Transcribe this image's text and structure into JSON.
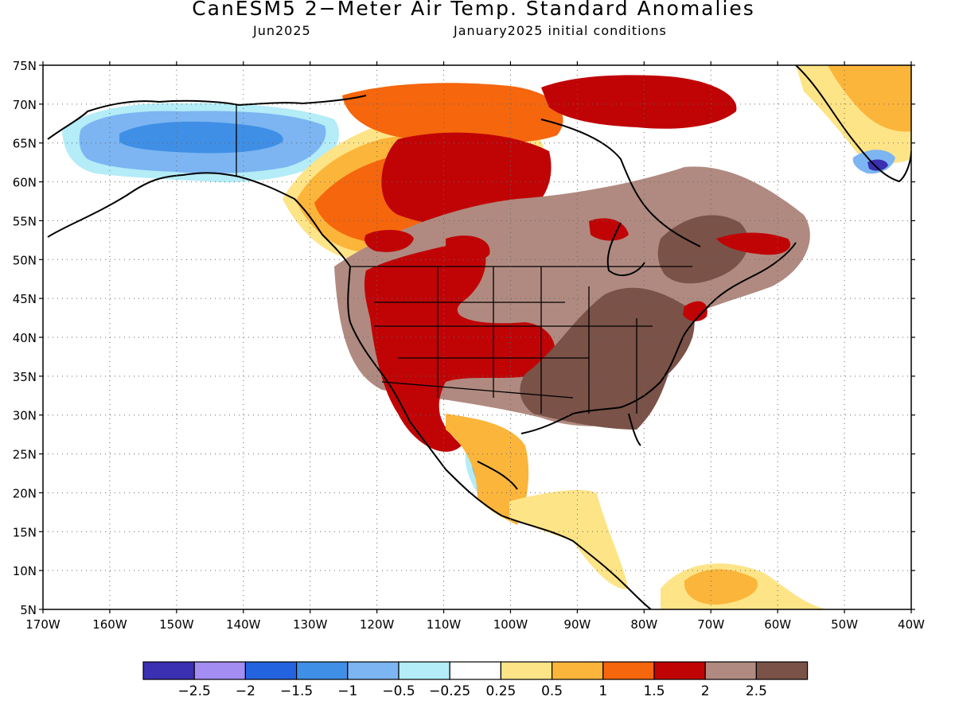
{
  "title": "CanESM5 2−Meter Air Temp. Standard Anomalies",
  "subtitle_left": "Jun2025",
  "subtitle_right": "January2025 initial conditions",
  "map": {
    "lon_range": [
      -170,
      -40
    ],
    "lat_range": [
      5,
      75
    ],
    "lat_ticks": [
      {
        "value": 75,
        "label": "75N"
      },
      {
        "value": 70,
        "label": "70N"
      },
      {
        "value": 65,
        "label": "65N"
      },
      {
        "value": 60,
        "label": "60N"
      },
      {
        "value": 55,
        "label": "55N"
      },
      {
        "value": 50,
        "label": "50N"
      },
      {
        "value": 45,
        "label": "45N"
      },
      {
        "value": 40,
        "label": "40N"
      },
      {
        "value": 35,
        "label": "35N"
      },
      {
        "value": 30,
        "label": "30N"
      },
      {
        "value": 25,
        "label": "25N"
      },
      {
        "value": 20,
        "label": "20N"
      },
      {
        "value": 15,
        "label": "15N"
      },
      {
        "value": 10,
        "label": "10N"
      },
      {
        "value": 5,
        "label": "5N"
      }
    ],
    "lon_ticks": [
      {
        "value": -170,
        "label": "170W"
      },
      {
        "value": -160,
        "label": "160W"
      },
      {
        "value": -150,
        "label": "150W"
      },
      {
        "value": -140,
        "label": "140W"
      },
      {
        "value": -130,
        "label": "130W"
      },
      {
        "value": -120,
        "label": "120W"
      },
      {
        "value": -110,
        "label": "110W"
      },
      {
        "value": -100,
        "label": "100W"
      },
      {
        "value": -90,
        "label": "90W"
      },
      {
        "value": -80,
        "label": "80W"
      },
      {
        "value": -70,
        "label": "70W"
      },
      {
        "value": -60,
        "label": "60W"
      },
      {
        "value": -50,
        "label": "50W"
      },
      {
        "value": -40,
        "label": "40W"
      }
    ],
    "gridlines": "dotted"
  },
  "legend": {
    "colors": [
      "#3b2fb2",
      "#a38cf2",
      "#2463e0",
      "#3f8fe6",
      "#7cb5f2",
      "#b4ecf7",
      "#ffffff",
      "#fde487",
      "#fbb53b",
      "#f5660d",
      "#c00406",
      "#b08a80",
      "#7a5248"
    ],
    "labels": [
      "−2.5",
      "−2",
      "−1.5",
      "−1",
      "−0.5",
      "−0.25",
      "0.25",
      "0.5",
      "1",
      "1.5",
      "2",
      "2.5"
    ]
  }
}
